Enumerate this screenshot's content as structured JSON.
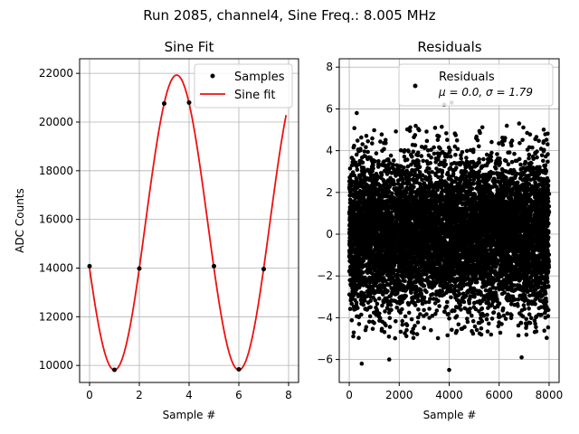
{
  "figure": {
    "suptitle": "Run 2085, channel4, Sine Freq.: 8.005 MHz"
  },
  "colors": {
    "samples": "#000000",
    "fit": "#ee1111",
    "grid": "#b0b0b0",
    "residuals": "#000000"
  },
  "chart_data": [
    {
      "type": "scatter+line",
      "title": "Sine Fit",
      "xlabel": "Sample #",
      "ylabel": "ADC Counts",
      "xlim": [
        -0.4,
        8.4
      ],
      "ylim": [
        9300,
        22600
      ],
      "xticks": [
        0,
        2,
        4,
        6,
        8
      ],
      "yticks": [
        10000,
        12000,
        14000,
        16000,
        18000,
        20000,
        22000
      ],
      "grid": true,
      "legend": {
        "position": "top-right",
        "entries": [
          "Samples",
          "Sine fit"
        ]
      },
      "series": [
        {
          "name": "Samples",
          "kind": "points",
          "x": [
            0,
            1,
            2,
            3,
            4,
            5,
            6,
            7
          ],
          "y": [
            14080,
            9820,
            13980,
            20760,
            20800,
            14080,
            9840,
            13960
          ]
        },
        {
          "name": "Sine fit",
          "kind": "curve",
          "model": {
            "offset": 15870,
            "amplitude": 6060,
            "period": 5,
            "phase_x": 3.5
          },
          "x_range": [
            0,
            7.9
          ]
        }
      ]
    },
    {
      "type": "scatter",
      "title": "Residuals",
      "xlabel": "Sample #",
      "ylabel": "",
      "xlim": [
        -400,
        8400
      ],
      "ylim": [
        -7.1,
        8.4
      ],
      "xticks": [
        0,
        2000,
        4000,
        6000,
        8000
      ],
      "yticks": [
        -6,
        -4,
        -2,
        0,
        2,
        4,
        6,
        8
      ],
      "grid": true,
      "legend": {
        "position": "top-right",
        "entries": [
          "Residuals",
          "μ = 0.0, σ = 1.79"
        ]
      },
      "series": [
        {
          "name": "Residuals",
          "n_points": 8000,
          "mean": 0.0,
          "std": 1.79,
          "x_range": [
            0,
            7999
          ],
          "extremes": [
            [
              4000,
              -6.5
            ],
            [
              3800,
              6.2
            ],
            [
              4100,
              6.3
            ],
            [
              500,
              -6.2
            ],
            [
              6900,
              -5.9
            ],
            [
              1600,
              -6.0
            ],
            [
              300,
              5.8
            ],
            [
              6800,
              5.3
            ]
          ]
        }
      ]
    }
  ]
}
